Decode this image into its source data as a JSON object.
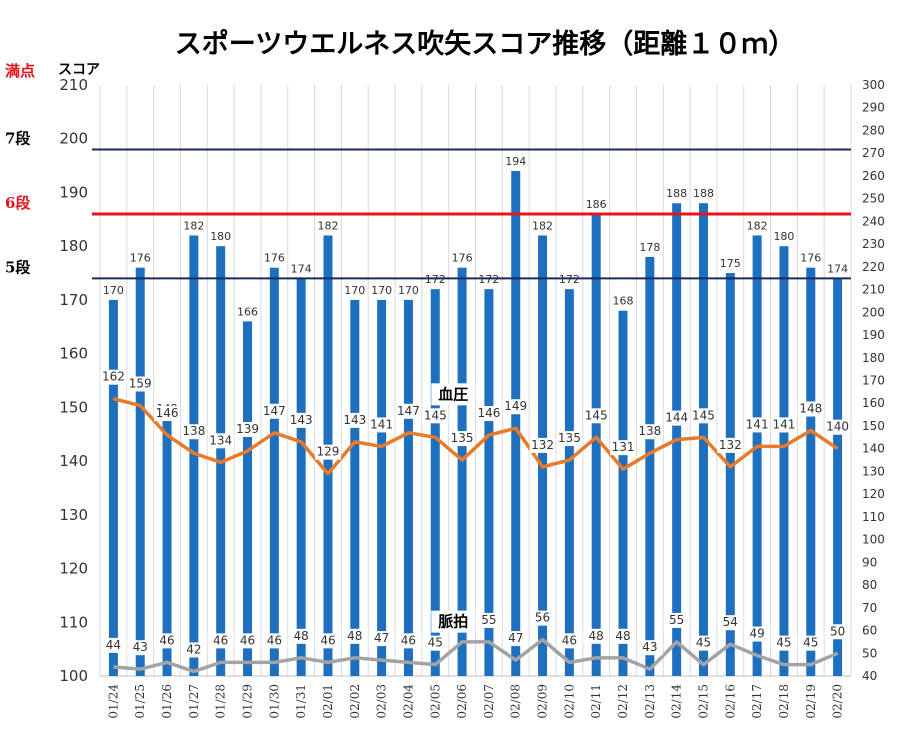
{
  "chart_data": {
    "type": "bar",
    "title": "スポーツウエルネス吹矢スコア推移（距離１０ｍ）",
    "ylabel": "スコア",
    "ylim": [
      100,
      210
    ],
    "y2lim": [
      40,
      300
    ],
    "categories": [
      "01/24",
      "01/25",
      "01/26",
      "01/27",
      "01/28",
      "01/29",
      "01/30",
      "01/31",
      "02/01",
      "02/02",
      "02/03",
      "02/04",
      "02/05",
      "02/06",
      "02/07",
      "02/08",
      "02/09",
      "02/10",
      "02/11",
      "02/12",
      "02/13",
      "02/14",
      "02/15",
      "02/16",
      "02/17",
      "02/18",
      "02/19",
      "02/20"
    ],
    "series": [
      {
        "values": [
          170,
          176,
          148,
          182,
          180,
          166,
          176,
          174,
          182,
          170,
          170,
          170,
          172,
          176,
          172,
          194,
          182,
          172,
          186,
          168,
          178,
          188,
          188,
          175,
          182,
          180,
          176,
          174
        ],
        "color": "#1f6fbf",
        "axis": "left",
        "kind": "bar"
      },
      {
        "name": "血圧",
        "values": [
          162,
          159,
          146,
          138,
          134,
          139,
          147,
          143,
          129,
          143,
          141,
          147,
          145,
          135,
          146,
          149,
          132,
          135,
          145,
          131,
          138,
          144,
          145,
          132,
          141,
          141,
          148,
          140
        ],
        "color": "#e87a2a",
        "axis": "right",
        "kind": "line"
      },
      {
        "name": "脈拍",
        "values": [
          44,
          43,
          46,
          42,
          46,
          46,
          46,
          48,
          46,
          48,
          47,
          46,
          45,
          55,
          55,
          47,
          56,
          46,
          48,
          48,
          43,
          55,
          45,
          54,
          49,
          45,
          45,
          50
        ],
        "color": "#a3a3a3",
        "axis": "right",
        "kind": "line"
      }
    ],
    "reference_lines": [
      {
        "label": "満点",
        "value": 210,
        "color": "#e8131b"
      },
      {
        "label": "7段",
        "value": 198,
        "color": "#1b2a5e"
      },
      {
        "label": "6段",
        "value": 186,
        "color": "#e8131b"
      },
      {
        "label": "5段",
        "value": 174,
        "color": "#1b2a5e"
      }
    ],
    "left_ticks": [
      210,
      200,
      190,
      180,
      170,
      160,
      150,
      140,
      130,
      120,
      110,
      100
    ],
    "right_ticks": [
      300,
      290,
      280,
      270,
      260,
      250,
      240,
      230,
      220,
      210,
      200,
      190,
      180,
      170,
      160,
      150,
      140,
      130,
      120,
      110,
      100,
      90,
      80,
      70,
      60,
      50,
      40
    ],
    "grid": "y-major-vertical"
  }
}
